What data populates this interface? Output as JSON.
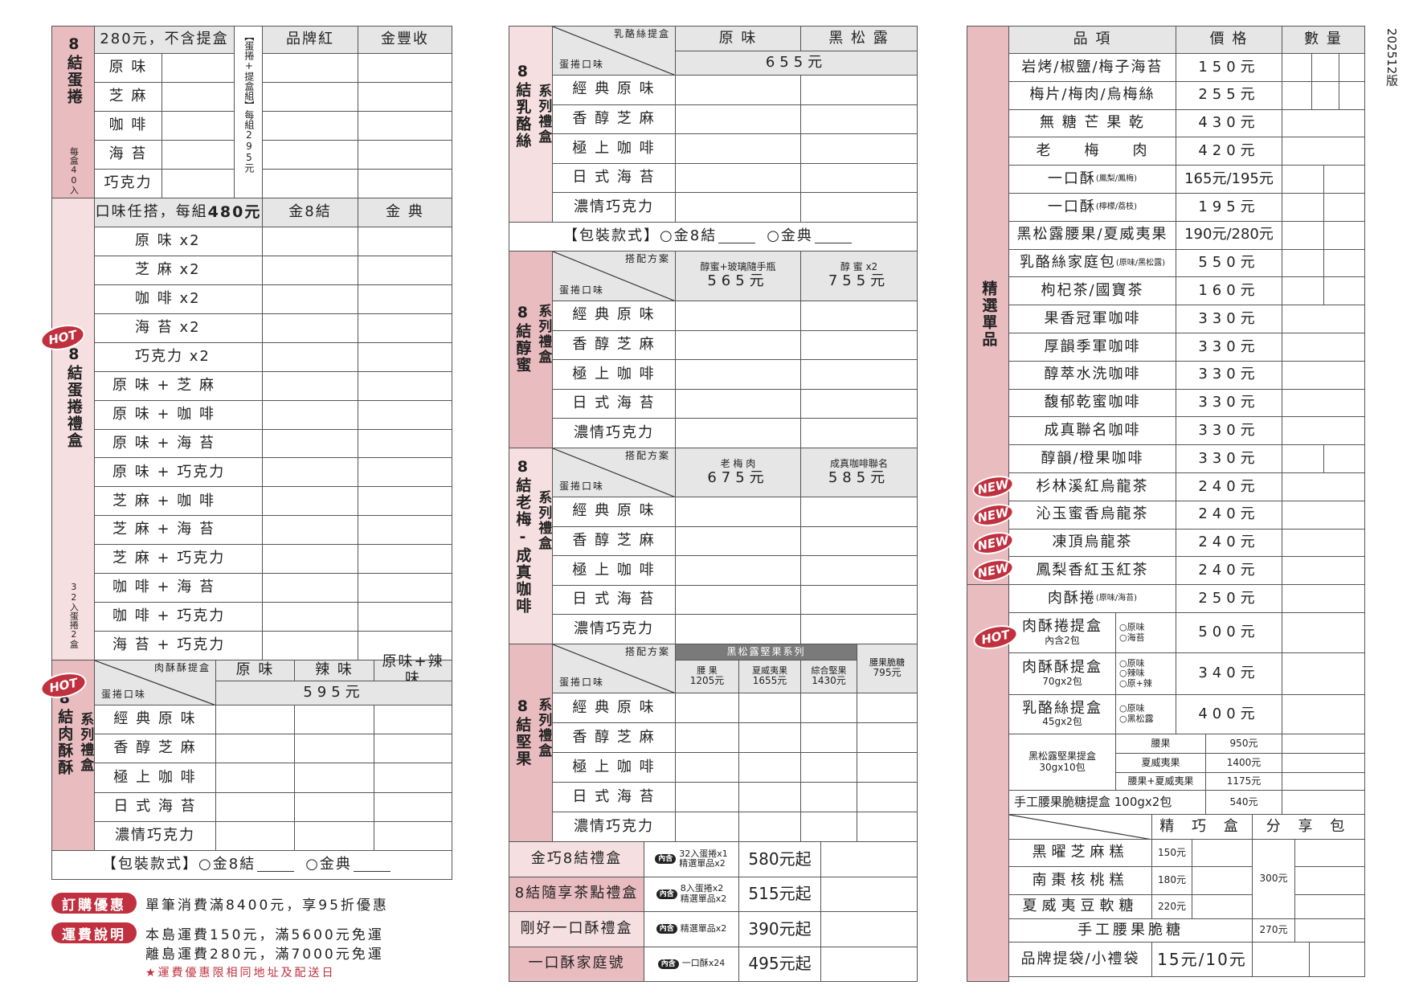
{
  "version": "202512版",
  "badges": {
    "hot": "HOT",
    "new": "NEW",
    "contains": "內含"
  },
  "colors": {
    "accent_red": "#c0303e",
    "side_pink": "#e9bcc0",
    "side_pink_light": "#f6dfe1",
    "header_gray": "#e6e6e6"
  },
  "egg_roll": {
    "side_title": "8結蛋捲",
    "side_note": "每盒40入",
    "price_note": "280元，不含提盒",
    "set_label": "【蛋捲+提盒組】",
    "set_price": "每組295元",
    "cols": [
      "品牌紅",
      "金豐收"
    ],
    "flavors": [
      "原 味",
      "芝 麻",
      "咖 啡",
      "海 苔",
      "巧克力"
    ]
  },
  "gift_box": {
    "side_title": "8結蛋捲禮盒",
    "side_note": "32入蛋捲2盒",
    "price_note": "口味任搭，每組",
    "price_value": "480元",
    "cols": [
      "金8結",
      "金 典"
    ],
    "combos": [
      "原 味 x2",
      "芝 麻 x2",
      "咖 啡 x2",
      "海 苔 x2",
      "巧克力 x2",
      "原 味 + 芝 麻",
      "原 味 + 咖 啡",
      "原 味 + 海 苔",
      "原 味 + 巧克力",
      "芝 麻 + 咖 啡",
      "芝 麻 + 海 苔",
      "芝 麻 + 巧克力",
      "咖 啡 + 海 苔",
      "咖 啡 + 巧克力",
      "海 苔 + 巧克力"
    ]
  },
  "flavors": [
    "經 典 原 味",
    "香 醇 芝 麻",
    "極 上 咖 啡",
    "日 式 海 苔",
    "濃情巧克力"
  ],
  "packaging": {
    "label": "【包裝款式】",
    "opt1": "○金8結",
    "opt2": "○金典"
  },
  "meat_floss": {
    "side_title": "8結肉酥酥",
    "side_sub": "系列禮盒",
    "corner_top": "肉酥酥提盒",
    "corner_bottom": "蛋捲口味",
    "cols": [
      "原 味",
      "辣 味",
      "原味+辣味"
    ],
    "price": "595元"
  },
  "cheese": {
    "side_title": "8結乳酪絲",
    "side_sub": "系列禮盒",
    "corner_top": "乳酪絲提盒",
    "corner_bottom": "蛋捲口味",
    "cols": [
      "原 味",
      "黑 松 露"
    ],
    "price": "655元"
  },
  "honey": {
    "side_title": "8結醇蜜",
    "side_sub": "系列禮盒",
    "corner_top": "搭配方案",
    "corner_bottom": "蛋捲口味",
    "cols": [
      {
        "name": "醇蜜+玻璃隨手瓶",
        "price": "565元"
      },
      {
        "name": "醇 蜜 x2",
        "price": "755元"
      }
    ]
  },
  "plum": {
    "side_title": "8結老梅-成真咖啡",
    "side_sub": "系列禮盒",
    "corner_top": "搭配方案",
    "corner_bottom": "蛋捲口味",
    "cols": [
      {
        "name": "老 梅 肉",
        "price": "675元"
      },
      {
        "name": "成真咖啡聯名",
        "price": "585元"
      }
    ]
  },
  "nuts": {
    "side_title": "8結堅果",
    "side_sub": "系列禮盒",
    "corner_top": "搭配方案",
    "corner_bottom": "蛋捲口味",
    "group": "黑松露堅果系列",
    "cols": [
      {
        "name": "腰 果",
        "price": "1205元"
      },
      {
        "name": "夏威夷果",
        "price": "1655元"
      },
      {
        "name": "綜合堅果",
        "price": "1430元"
      },
      {
        "name": "腰果脆糖",
        "price": "795元"
      }
    ]
  },
  "gift_sets": [
    {
      "name": "金巧8結禮盒",
      "contents": [
        "32入蛋捲x1",
        "精選單品x2"
      ],
      "price": "580元起"
    },
    {
      "name": "8結隨享茶點禮盒",
      "contents": [
        "8入蛋捲x2",
        "精選單品x2"
      ],
      "price": "515元起"
    },
    {
      "name": "剛好一口酥禮盒",
      "contents": [
        "精選單品x2"
      ],
      "price": "390元起"
    },
    {
      "name": "一口酥家庭號",
      "contents": [
        "一口酥x24"
      ],
      "price": "495元起"
    }
  ],
  "singles": {
    "side_title": "精選單品",
    "headers": [
      "品 項",
      "價 格",
      "數 量"
    ],
    "items": [
      {
        "name": "岩烤/椒鹽/梅子海苔",
        "sub": "",
        "price": "150元",
        "new": false
      },
      {
        "name": "梅片/梅肉/烏梅絲",
        "sub": "",
        "price": "255元",
        "new": false
      },
      {
        "name": "無 糖 芒 果 乾",
        "sub": "",
        "price": "430元",
        "new": false
      },
      {
        "name": "老　　梅　　肉",
        "sub": "",
        "price": "420元",
        "new": false
      },
      {
        "name": "一口酥",
        "sub": "(鳳梨/鳳梅)",
        "price": "165元/195元",
        "new": false
      },
      {
        "name": "一口酥",
        "sub": "(檸檬/荔枝)",
        "price": "195元",
        "new": false
      },
      {
        "name": "黑松露腰果/夏威夷果",
        "sub": "",
        "price": "190元/280元",
        "new": false
      },
      {
        "name": "乳酪絲家庭包",
        "sub": "(原味/黑松露)",
        "price": "550元",
        "new": false
      },
      {
        "name": "枸杞茶/國寶茶",
        "sub": "",
        "price": "160元",
        "new": false
      },
      {
        "name": "果香冠軍咖啡",
        "sub": "",
        "price": "330元",
        "new": false
      },
      {
        "name": "厚韻季軍咖啡",
        "sub": "",
        "price": "330元",
        "new": false
      },
      {
        "name": "醇萃水洗咖啡",
        "sub": "",
        "price": "330元",
        "new": false
      },
      {
        "name": "馥郁乾蜜咖啡",
        "sub": "",
        "price": "330元",
        "new": false
      },
      {
        "name": "成真聯名咖啡",
        "sub": "",
        "price": "330元",
        "new": false
      },
      {
        "name": "醇韻/橙果咖啡",
        "sub": "",
        "price": "330元",
        "new": false
      },
      {
        "name": "杉林溪紅烏龍茶",
        "sub": "",
        "price": "240元",
        "new": true
      },
      {
        "name": "沁玉蜜香烏龍茶",
        "sub": "",
        "price": "240元",
        "new": true
      },
      {
        "name": "凍頂烏龍茶",
        "sub": "",
        "price": "240元",
        "new": true
      },
      {
        "name": "鳳梨香紅玉紅茶",
        "sub": "",
        "price": "240元",
        "new": true
      }
    ],
    "roll": {
      "name": "肉酥捲",
      "sub": "(原味/海苔)",
      "price": "250元"
    },
    "boxes": [
      {
        "name": "肉酥捲提盒",
        "sub": "內含2包",
        "options": [
          "○原味",
          "○海苔"
        ],
        "price": "500元"
      },
      {
        "name": "肉酥酥提盒",
        "sub": "70gx2包",
        "options": [
          "○原味",
          "○辣味",
          "○原+辣"
        ],
        "price": "340元"
      },
      {
        "name": "乳酪絲提盒",
        "sub": "45gx2包",
        "options": [
          "○原味",
          "○黑松露"
        ],
        "price": "400元"
      }
    ],
    "nut_box": {
      "name": "黑松露堅果提盒",
      "sub": "30gx10包",
      "variants": [
        {
          "name": "腰果",
          "price": "950元"
        },
        {
          "name": "夏威夷果",
          "price": "1400元"
        },
        {
          "name": "腰果+夏威夷果",
          "price": "1175元"
        }
      ]
    },
    "brittle_box": {
      "name": "手工腰果脆糖提盒 100gx2包",
      "price": "540元"
    },
    "cakes": {
      "headers": [
        "精 巧 盒",
        "分 享 包"
      ],
      "items": [
        {
          "name": "黑曜芝麻糕",
          "price": "150元"
        },
        {
          "name": "南棗核桃糕",
          "price": "180元"
        },
        {
          "name": "夏威夷豆軟糖",
          "price": "220元"
        }
      ],
      "share_price": "300元"
    },
    "brittle": {
      "name": "手工腰果脆糖",
      "price": "270元"
    },
    "bags": {
      "name": "品牌提袋/小禮袋",
      "price": "15元/10元"
    }
  },
  "footer": {
    "discount_badge": "訂購優惠",
    "discount_text": "單筆消費滿8400元，享95折優惠",
    "shipping_badge": "運費說明",
    "shipping_lines": [
      "本島運費150元，滿5600元免運",
      "離島運費280元，滿7000元免運"
    ],
    "note": "★運費優惠限相同地址及配送日"
  }
}
